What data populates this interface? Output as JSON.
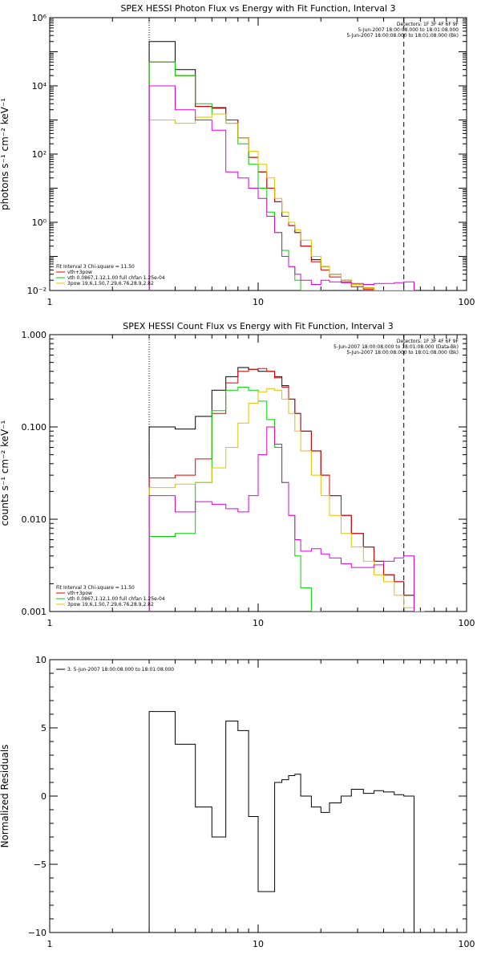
{
  "chart_data": [
    {
      "type": "line",
      "title": "SPEX HESSI Photon Flux vs Energy with Fit Function, Interval 3",
      "ylabel": "photons s⁻¹ cm⁻² keV⁻¹",
      "xlabel": "",
      "xscale": "log",
      "yscale": "log",
      "xlim": [
        1,
        100
      ],
      "ylim": [
        0.01,
        1000000
      ],
      "x_ticks": [
        1,
        10,
        100
      ],
      "x_tick_labels": [
        "1",
        "10",
        "100"
      ],
      "y_ticks": [
        0.01,
        1,
        100,
        10000,
        1000000
      ],
      "y_tick_labels": [
        "10⁻²",
        "10⁰",
        "10²",
        "10⁴",
        "10⁶"
      ],
      "header_lines": [
        "Detectors: 1F 3F 4F 6F 9F",
        "5-Jun-2007 18:00:08.000 to 18:01:08.000",
        "5-Jun-2007 18:00:08.000 to 18:01:08.000 (Bk)"
      ],
      "legend": [
        "Fit Interval 3   Chi-square = 11.50",
        "vth+3pow",
        "vth 0.0867,1.12,1.00  full chfan 1.25e-04",
        "3pow 19.6,1.50,7.29,6.76,28.9,2.82"
      ],
      "markers": [
        {
          "x": 3.0,
          "style": "dotted",
          "color": "#000000"
        },
        {
          "x": 50.0,
          "style": "dashed",
          "color": "#000000"
        }
      ],
      "series": [
        {
          "color": "#000000",
          "x": [
            3,
            4,
            5,
            6,
            7,
            8,
            9,
            10,
            11,
            12,
            13,
            14,
            15,
            16,
            18,
            20,
            22,
            25,
            28,
            32,
            36,
            40,
            45,
            50
          ],
          "y": [
            200000,
            30000,
            2500,
            2300,
            1000,
            300,
            80,
            30,
            10,
            4,
            1.5,
            0.8,
            0.5,
            0.2,
            0.08,
            0.05,
            0.03,
            0.02,
            0.015,
            0.012,
            0.01,
            0.01,
            0.01,
            0.01
          ]
        },
        {
          "color": "#e00000",
          "x": [
            3,
            4,
            5,
            6,
            7,
            8,
            9,
            10,
            11,
            12,
            13,
            14,
            15,
            16,
            18,
            20,
            22,
            25,
            28,
            32,
            36,
            40,
            45,
            50
          ],
          "y": [
            50000,
            20000,
            2500,
            2200,
            1000,
            300,
            80,
            30,
            10,
            4,
            1.5,
            0.8,
            0.5,
            0.2,
            0.07,
            0.04,
            0.025,
            0.018,
            0.013,
            0.011,
            0.01,
            0.01,
            0.01,
            0.01
          ]
        },
        {
          "color": "#00d000",
          "x": [
            3,
            4,
            5,
            6,
            7,
            8,
            9,
            10,
            11,
            12,
            13,
            14,
            15,
            16,
            18
          ],
          "y": [
            50000,
            20000,
            3000,
            1500,
            800,
            200,
            50,
            10,
            2,
            0.5,
            0.15,
            0.05,
            0.02,
            0.01,
            0.01
          ]
        },
        {
          "color": "#e0c000",
          "x": [
            3,
            4,
            5,
            6,
            7,
            8,
            9,
            10,
            11,
            12,
            13,
            14,
            15,
            16,
            18,
            20,
            22,
            25,
            28,
            32,
            36,
            40,
            45,
            50
          ],
          "y": [
            1000,
            800,
            1200,
            1500,
            800,
            300,
            120,
            50,
            20,
            5,
            2,
            1,
            0.6,
            0.3,
            0.1,
            0.05,
            0.03,
            0.02,
            0.015,
            0.012,
            0.01,
            0.01,
            0.01,
            0.01
          ]
        },
        {
          "color": "#e000e0",
          "x": [
            3,
            4,
            5,
            6,
            7,
            8,
            9,
            10,
            11,
            12,
            13,
            14,
            15,
            16,
            18,
            20,
            22,
            25,
            28,
            32,
            36,
            40,
            45,
            50
          ],
          "y": [
            10000,
            2000,
            1000,
            500,
            30,
            20,
            10,
            5,
            1.5,
            0.5,
            0.1,
            0.05,
            0.03,
            0.02,
            0.015,
            0.02,
            0.018,
            0.017,
            0.016,
            0.015,
            0.016,
            0.016,
            0.017,
            0.018
          ]
        }
      ]
    },
    {
      "type": "line",
      "title": "SPEX HESSI Count Flux vs Energy with Fit Function, Interval 3",
      "ylabel": "counts s⁻¹ cm⁻² keV⁻¹",
      "xlabel": "",
      "xscale": "log",
      "yscale": "log",
      "xlim": [
        1,
        100
      ],
      "ylim": [
        0.001,
        1
      ],
      "x_ticks": [
        1,
        10,
        100
      ],
      "x_tick_labels": [
        "1",
        "10",
        "100"
      ],
      "y_ticks": [
        0.001,
        0.01,
        0.1,
        1
      ],
      "y_tick_labels": [
        "0.001",
        "0.010",
        "0.100",
        "1.000"
      ],
      "header_lines": [
        "Detectors: 1F 3F 4F 6F 9F",
        "5-Jun-2007 18:00:08.000 to 18:01:08.000 (Data-Bk)",
        "5-Jun-2007 18:00:08.000 to 18:01:08.000 (Bk)"
      ],
      "legend": [
        "Fit Interval 3   Chi-square = 11.50",
        "vth+3pow",
        "vth 0.0867,1.12,1.00  full chfan 1.25e-04",
        "3pow 19.6,1.50,7.29,6.76,28.9,2.82"
      ],
      "markers": [
        {
          "x": 3.0,
          "style": "dotted",
          "color": "#000000"
        },
        {
          "x": 50.0,
          "style": "dashed",
          "color": "#000000"
        }
      ],
      "series": [
        {
          "color": "#000000",
          "x": [
            3,
            4,
            5,
            6,
            7,
            8,
            9,
            10,
            11,
            12,
            13,
            14,
            15,
            16,
            18,
            20,
            22,
            25,
            28,
            32,
            36,
            40,
            45,
            50,
            56
          ],
          "y": [
            0.1,
            0.095,
            0.13,
            0.25,
            0.35,
            0.44,
            0.42,
            0.4,
            0.4,
            0.35,
            0.28,
            0.2,
            0.14,
            0.09,
            0.055,
            0.03,
            0.018,
            0.011,
            0.007,
            0.005,
            0.0035,
            0.0025,
            0.0021,
            0.0015,
            0.001
          ]
        },
        {
          "color": "#e00000",
          "x": [
            3,
            4,
            5,
            6,
            7,
            8,
            9,
            10,
            11,
            12,
            13,
            14,
            15,
            16,
            18,
            20,
            22,
            25,
            28,
            32,
            36,
            40,
            45,
            50,
            56
          ],
          "y": [
            0.028,
            0.03,
            0.045,
            0.14,
            0.3,
            0.4,
            0.42,
            0.43,
            0.4,
            0.34,
            0.27,
            0.2,
            0.14,
            0.09,
            0.055,
            0.03,
            0.018,
            0.011,
            0.007,
            0.005,
            0.0035,
            0.0025,
            0.0021,
            0.0015,
            0.001
          ]
        },
        {
          "color": "#00d000",
          "x": [
            3,
            4,
            5,
            6,
            7,
            8,
            9,
            10,
            11,
            12,
            13,
            14,
            15,
            16,
            18
          ],
          "y": [
            0.0065,
            0.007,
            0.025,
            0.15,
            0.25,
            0.27,
            0.25,
            0.19,
            0.12,
            0.06,
            0.025,
            0.011,
            0.004,
            0.0018,
            0.001
          ]
        },
        {
          "color": "#e0c000",
          "x": [
            3,
            4,
            5,
            6,
            7,
            8,
            9,
            10,
            11,
            12,
            13,
            14,
            15,
            16,
            18,
            20,
            22,
            25,
            28,
            32,
            36,
            40,
            45,
            50,
            56
          ],
          "y": [
            0.022,
            0.024,
            0.025,
            0.036,
            0.06,
            0.11,
            0.18,
            0.24,
            0.26,
            0.25,
            0.2,
            0.14,
            0.09,
            0.055,
            0.03,
            0.018,
            0.011,
            0.007,
            0.005,
            0.0035,
            0.0025,
            0.0021,
            0.0015,
            0.0011,
            0.001
          ]
        },
        {
          "color": "#e000e0",
          "x": [
            3,
            4,
            5,
            6,
            7,
            8,
            9,
            10,
            11,
            12,
            13,
            14,
            15,
            16,
            18,
            20,
            22,
            25,
            28,
            32,
            36,
            40,
            45,
            50
          ],
          "y": [
            0.018,
            0.012,
            0.0155,
            0.0145,
            0.013,
            0.012,
            0.018,
            0.05,
            0.1,
            0.065,
            0.025,
            0.011,
            0.006,
            0.0045,
            0.0048,
            0.0042,
            0.0038,
            0.0033,
            0.003,
            0.003,
            0.0032,
            0.0035,
            0.0038,
            0.004
          ]
        }
      ]
    },
    {
      "type": "line",
      "title": "",
      "ylabel": "Normalized Residuals",
      "xlabel": "",
      "xscale": "log",
      "yscale": "linear",
      "xlim": [
        1,
        100
      ],
      "ylim": [
        -10,
        10
      ],
      "x_ticks": [
        1,
        10,
        100
      ],
      "x_tick_labels": [
        "1",
        "10",
        "100"
      ],
      "y_ticks": [
        -10,
        -5,
        0,
        5,
        10
      ],
      "y_tick_labels": [
        "−10",
        "−5",
        "0",
        "5",
        "10"
      ],
      "header_lines": [],
      "legend": [
        "3.  5-Jun-2007 18:00:08.000 to 18:01:08.000"
      ],
      "markers": [],
      "series": [
        {
          "color": "#000000",
          "x": [
            3,
            4,
            5,
            6,
            7,
            8,
            9,
            10,
            11,
            12,
            13,
            14,
            15,
            16,
            18,
            20,
            22,
            25,
            28,
            32,
            36,
            40,
            45,
            50
          ],
          "y": [
            6.2,
            3.8,
            -0.8,
            -3.0,
            5.5,
            4.8,
            -1.5,
            -7.0,
            -7.0,
            1.0,
            1.2,
            1.5,
            1.6,
            0.0,
            -0.8,
            -1.2,
            -0.5,
            0.0,
            0.5,
            0.2,
            0.4,
            0.3,
            0.1,
            0.0
          ]
        }
      ]
    }
  ]
}
